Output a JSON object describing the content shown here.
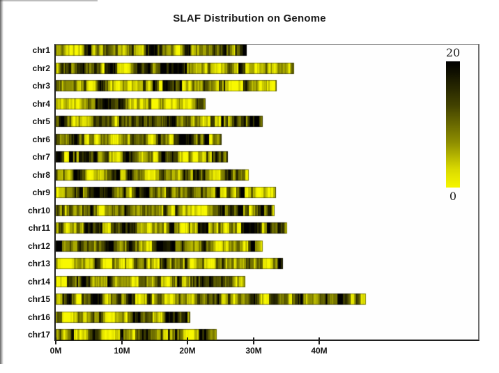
{
  "title": "SLAF Distribution on Genome",
  "chart_data": {
    "type": "heatmap",
    "title": "SLAF Distribution on Genome",
    "orientation": "horizontal-bars",
    "categories": [
      "chr1",
      "chr2",
      "chr3",
      "chr4",
      "chr5",
      "chr6",
      "chr7",
      "chr8",
      "chr9",
      "chr10",
      "chr11",
      "chr12",
      "chr13",
      "chr14",
      "chr15",
      "chr16",
      "chr17"
    ],
    "chromosome_lengths_mb": [
      29.0,
      36.2,
      33.5,
      22.8,
      31.4,
      25.2,
      26.1,
      29.3,
      33.4,
      33.2,
      35.1,
      31.4,
      34.5,
      28.8,
      47.1,
      20.4,
      24.4
    ],
    "x_tick_labels": [
      "0M",
      "10M",
      "20M",
      "30M",
      "40M"
    ],
    "x_tick_values_mb": [
      0,
      10,
      20,
      30,
      40
    ],
    "x_range_mb": [
      0,
      64
    ],
    "grid": false,
    "legend_position": "right",
    "colorbar": {
      "min": 0,
      "max": 20,
      "min_label": "0",
      "max_label": "20",
      "min_color": "#f6f600",
      "max_color": "#000000"
    }
  }
}
